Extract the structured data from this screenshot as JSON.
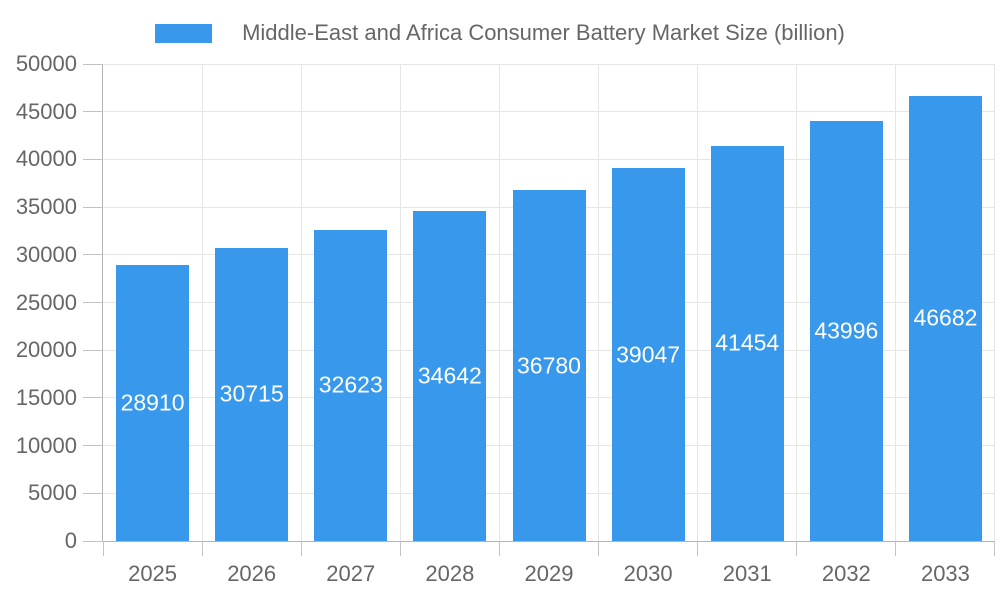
{
  "chart_data": {
    "type": "bar",
    "title": "Middle-East and Africa Consumer Battery Market Size (billion)",
    "categories": [
      "2025",
      "2026",
      "2027",
      "2028",
      "2029",
      "2030",
      "2031",
      "2032",
      "2033"
    ],
    "values": [
      28910,
      30715,
      32623,
      34642,
      36780,
      39047,
      41454,
      43996,
      46682
    ],
    "xlabel": "",
    "ylabel": "",
    "ylim": [
      0,
      50000
    ],
    "ytick_step": 5000,
    "grid": true,
    "legend_position": "top",
    "value_labels": "inside-center",
    "colors": {
      "bar": "#3899EC",
      "bar_label": "#FFFFFF",
      "axis_line": "#B3B3B3",
      "grid": "#E6E6E6",
      "tick": "#C2C2C2",
      "text": "#666666",
      "background": "#FFFFFF"
    }
  }
}
